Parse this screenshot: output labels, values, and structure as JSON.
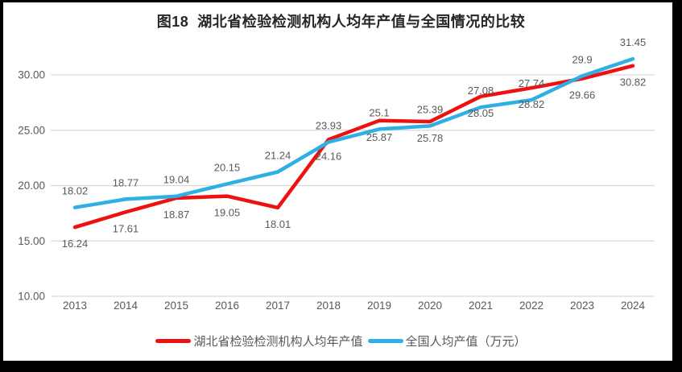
{
  "title": "图18  湖北省检验检测机构人均年产值与全国情况的比较",
  "chart_data": {
    "type": "line",
    "title": "图18  湖北省检验检测机构人均年产值与全国情况的比较",
    "categories": [
      "2013",
      "2014",
      "2015",
      "2016",
      "2017",
      "2018",
      "2019",
      "2020",
      "2021",
      "2022",
      "2023",
      "2024"
    ],
    "series": [
      {
        "name": "湖北省检验检测机构人均年产值",
        "color": "#ED1111",
        "label_position": "below",
        "values": [
          16.24,
          17.61,
          18.87,
          19.05,
          18.01,
          24.16,
          25.87,
          25.78,
          28.05,
          28.82,
          29.66,
          30.82
        ],
        "labels": [
          "16.24",
          "17.61",
          "18.87",
          "19.05",
          "18.01",
          "24.16",
          "25.87",
          "25.78",
          "28.05",
          "28.82",
          "29.66",
          "30.82"
        ]
      },
      {
        "name": "全国人均产值（万元）",
        "color": "#2FB0E5",
        "label_position": "above",
        "values": [
          18.02,
          18.77,
          19.04,
          20.15,
          21.24,
          23.93,
          25.1,
          25.39,
          27.08,
          27.74,
          29.9,
          31.45
        ],
        "labels": [
          "18.02",
          "18.77",
          "19.04",
          "20.15",
          "21.24",
          "23.93",
          "25.1",
          "25.39",
          "27.08",
          "27.74",
          "29.9",
          "31.45"
        ]
      }
    ],
    "y_axis": {
      "tick_values": [
        30,
        25,
        20,
        15,
        10
      ],
      "tick_labels": [
        "30.00",
        "25.00",
        "20.00",
        "15.00",
        "10.00"
      ],
      "min": 10,
      "max": 32
    },
    "grid": true,
    "legend_position": "bottom",
    "colors": {
      "grid": "#D9D9D9",
      "text": "#595959",
      "title": "#262626",
      "frame": "#000000",
      "background": "#FFFFFF"
    }
  }
}
